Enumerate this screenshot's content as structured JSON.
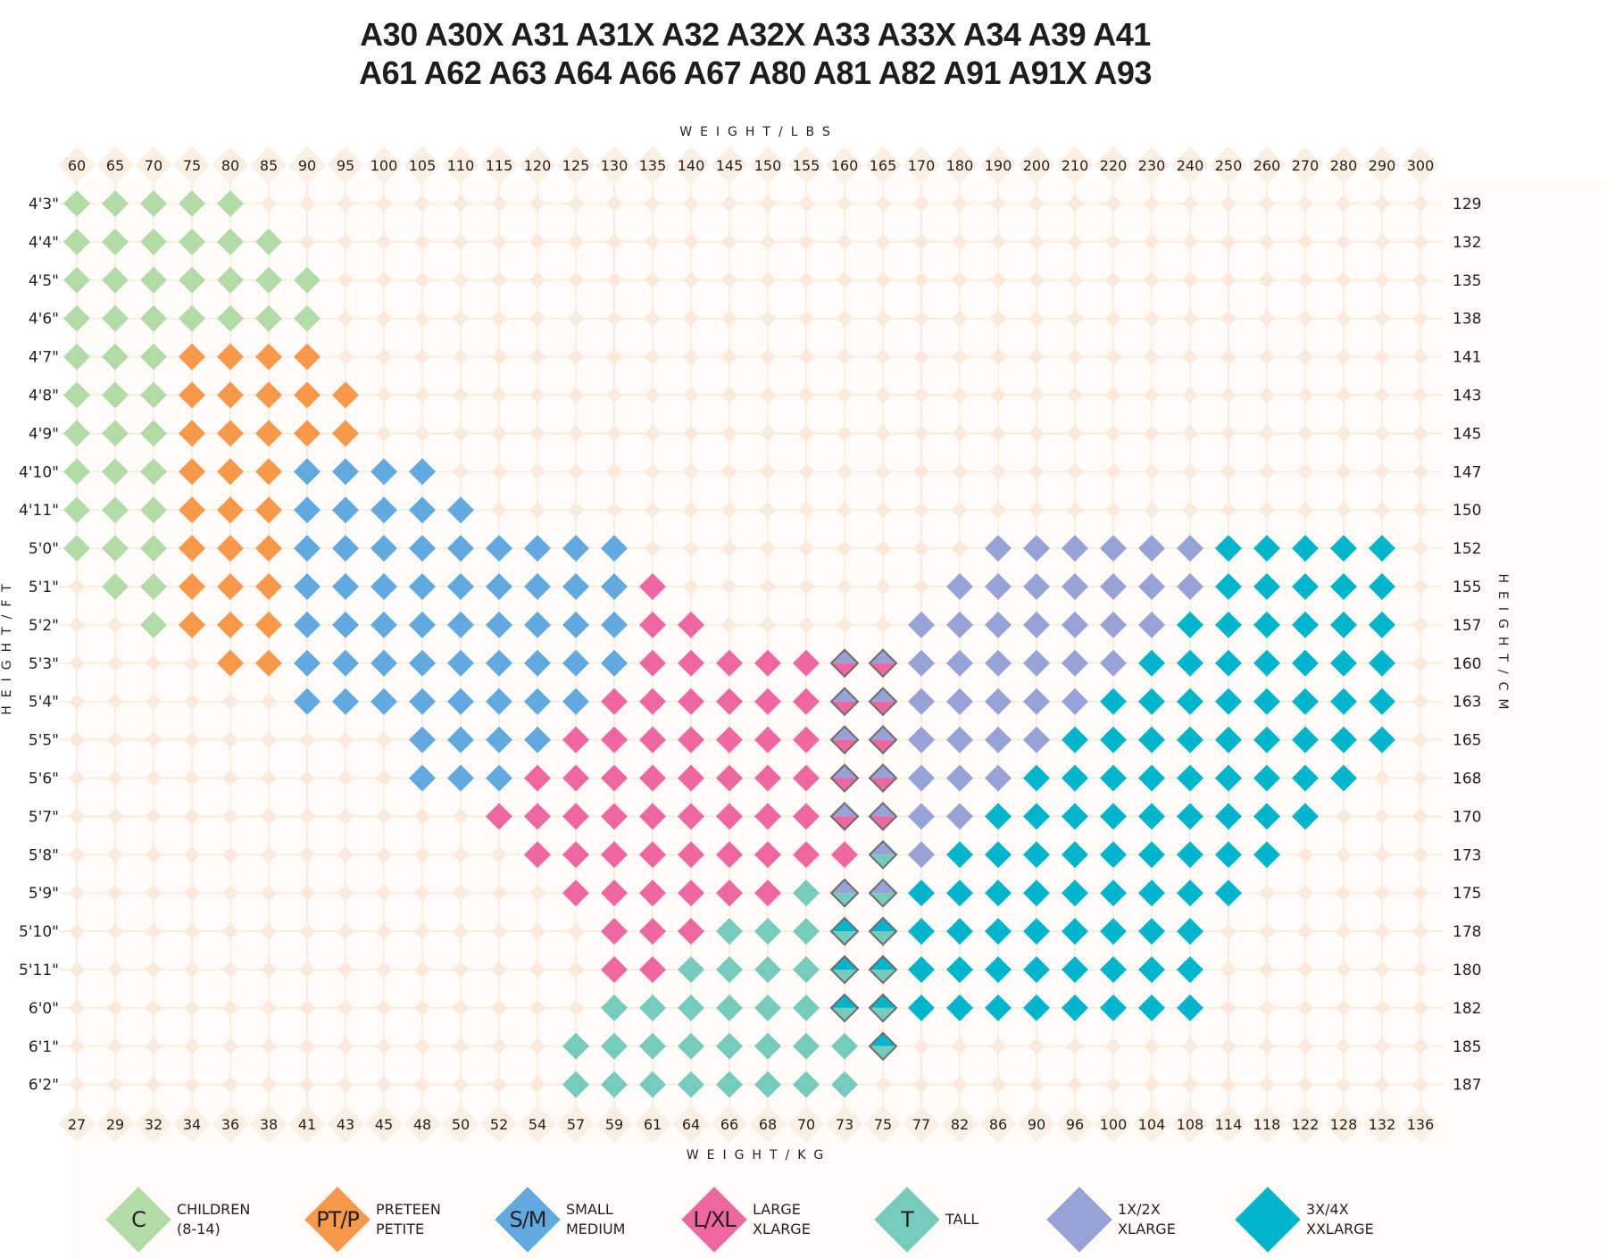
{
  "title": {
    "line1": "A30 A30X A31 A31X A32 A32X A33 A33X A34 A39 A41",
    "line2": "A61 A62 A63 A64 A66 A67 A80 A81 A82 A91 A91X A93"
  },
  "colors": {
    "C": "#b3dba8",
    "PT/P": "#f7984a",
    "S/M": "#62a9e0",
    "L/XL": "#ee67a0",
    "T": "#77cbbd",
    "1X/2X": "#97a2d6",
    "3X/4X": "#00b4cc",
    "grid": "#f8eee4",
    "empty_marker": "#fbeadc",
    "split_outline": "#6b6b70"
  },
  "legend": [
    {
      "key": "C",
      "code": "C",
      "line1": "CHILDREN",
      "line2": "(8-14)"
    },
    {
      "key": "PT/P",
      "code": "PT/P",
      "line1": "PRETEEN",
      "line2": "PETITE"
    },
    {
      "key": "S/M",
      "code": "S/M",
      "line1": "SMALL",
      "line2": "MEDIUM"
    },
    {
      "key": "L/XL",
      "code": "L/XL",
      "line1": "LARGE",
      "line2": "XLARGE"
    },
    {
      "key": "T",
      "code": "T",
      "line1": "TALL",
      "line2": ""
    },
    {
      "key": "1X/2X",
      "code": "",
      "line1": "1X/2X",
      "line2": "XLARGE"
    },
    {
      "key": "3X/4X",
      "code": "",
      "line1": "3X/4X",
      "line2": "XXLARGE"
    }
  ],
  "chart_data": {
    "type": "heatmap",
    "xlabel_top": "WEIGHT/LBS",
    "xlabel_bottom": "WEIGHT/KG",
    "ylabel_left": "HEIGHT/FT",
    "ylabel_right": "HEIGHT/CM",
    "weight_lbs": [
      "60",
      "65",
      "70",
      "75",
      "80",
      "85",
      "90",
      "95",
      "100",
      "105",
      "110",
      "115",
      "120",
      "125",
      "130",
      "135",
      "140",
      "145",
      "150",
      "155",
      "160",
      "165",
      "170",
      "180",
      "190",
      "200",
      "210",
      "220",
      "230",
      "240",
      "250",
      "260",
      "270",
      "280",
      "290",
      "300"
    ],
    "weight_kg": [
      "27",
      "29",
      "32",
      "34",
      "36",
      "38",
      "41",
      "43",
      "45",
      "48",
      "50",
      "52",
      "54",
      "57",
      "59",
      "61",
      "64",
      "66",
      "68",
      "70",
      "73",
      "75",
      "77",
      "82",
      "86",
      "90",
      "96",
      "100",
      "104",
      "108",
      "114",
      "118",
      "122",
      "128",
      "132",
      "136"
    ],
    "height_ft": [
      "4'3\"",
      "4'4\"",
      "4'5\"",
      "4'6\"",
      "4'7\"",
      "4'8\"",
      "4'9\"",
      "4'10\"",
      "4'11\"",
      "5'0\"",
      "5'1\"",
      "5'2\"",
      "5'3\"",
      "5'4\"",
      "5'5\"",
      "5'6\"",
      "5'7\"",
      "5'8\"",
      "5'9\"",
      "5'10\"",
      "5'11\"",
      "6'0\"",
      "6'1\"",
      "6'2\""
    ],
    "height_cm": [
      "129",
      "132",
      "135",
      "138",
      "141",
      "143",
      "145",
      "147",
      "150",
      "152",
      "155",
      "157",
      "160",
      "163",
      "165",
      "168",
      "170",
      "173",
      "175",
      "178",
      "180",
      "182",
      "185",
      "187"
    ],
    "split_cells_note_order": [
      "top",
      "bottom"
    ],
    "cells": [
      [
        "C",
        "C",
        "C",
        "C",
        "C",
        "",
        "",
        "",
        "",
        "",
        "",
        "",
        "",
        "",
        "",
        "",
        "",
        "",
        "",
        "",
        "",
        "",
        "",
        "",
        "",
        "",
        "",
        "",
        "",
        "",
        "",
        "",
        "",
        "",
        "",
        ""
      ],
      [
        "C",
        "C",
        "C",
        "C",
        "C",
        "C",
        "",
        "",
        "",
        "",
        "",
        "",
        "",
        "",
        "",
        "",
        "",
        "",
        "",
        "",
        "",
        "",
        "",
        "",
        "",
        "",
        "",
        "",
        "",
        "",
        "",
        "",
        "",
        "",
        "",
        ""
      ],
      [
        "C",
        "C",
        "C",
        "C",
        "C",
        "C",
        "C",
        "",
        "",
        "",
        "",
        "",
        "",
        "",
        "",
        "",
        "",
        "",
        "",
        "",
        "",
        "",
        "",
        "",
        "",
        "",
        "",
        "",
        "",
        "",
        "",
        "",
        "",
        "",
        "",
        ""
      ],
      [
        "C",
        "C",
        "C",
        "C",
        "C",
        "C",
        "C",
        "",
        "",
        "",
        "",
        "",
        "",
        "",
        "",
        "",
        "",
        "",
        "",
        "",
        "",
        "",
        "",
        "",
        "",
        "",
        "",
        "",
        "",
        "",
        "",
        "",
        "",
        "",
        "",
        ""
      ],
      [
        "C",
        "C",
        "C",
        "PT/P",
        "PT/P",
        "PT/P",
        "PT/P",
        "",
        "",
        "",
        "",
        "",
        "",
        "",
        "",
        "",
        "",
        "",
        "",
        "",
        "",
        "",
        "",
        "",
        "",
        "",
        "",
        "",
        "",
        "",
        "",
        "",
        "",
        "",
        "",
        ""
      ],
      [
        "C",
        "C",
        "C",
        "PT/P",
        "PT/P",
        "PT/P",
        "PT/P",
        "PT/P",
        "",
        "",
        "",
        "",
        "",
        "",
        "",
        "",
        "",
        "",
        "",
        "",
        "",
        "",
        "",
        "",
        "",
        "",
        "",
        "",
        "",
        "",
        "",
        "",
        "",
        "",
        "",
        ""
      ],
      [
        "C",
        "C",
        "C",
        "PT/P",
        "PT/P",
        "PT/P",
        "PT/P",
        "PT/P",
        "",
        "",
        "",
        "",
        "",
        "",
        "",
        "",
        "",
        "",
        "",
        "",
        "",
        "",
        "",
        "",
        "",
        "",
        "",
        "",
        "",
        "",
        "",
        "",
        "",
        "",
        "",
        ""
      ],
      [
        "C",
        "C",
        "C",
        "PT/P",
        "PT/P",
        "PT/P",
        "S/M",
        "S/M",
        "S/M",
        "S/M",
        "",
        "",
        "",
        "",
        "",
        "",
        "",
        "",
        "",
        "",
        "",
        "",
        "",
        "",
        "",
        "",
        "",
        "",
        "",
        "",
        "",
        "",
        "",
        "",
        "",
        ""
      ],
      [
        "C",
        "C",
        "C",
        "PT/P",
        "PT/P",
        "PT/P",
        "S/M",
        "S/M",
        "S/M",
        "S/M",
        "S/M",
        "",
        "",
        "",
        "",
        "",
        "",
        "",
        "",
        "",
        "",
        "",
        "",
        "",
        "",
        "",
        "",
        "",
        "",
        "",
        "",
        "",
        "",
        "",
        "",
        ""
      ],
      [
        "C",
        "C",
        "C",
        "PT/P",
        "PT/P",
        "PT/P",
        "S/M",
        "S/M",
        "S/M",
        "S/M",
        "S/M",
        "S/M",
        "S/M",
        "S/M",
        "S/M",
        "",
        "",
        "",
        "",
        "",
        "",
        "",
        "",
        "",
        "1X/2X",
        "1X/2X",
        "1X/2X",
        "1X/2X",
        "1X/2X",
        "1X/2X",
        "3X/4X",
        "3X/4X",
        "3X/4X",
        "3X/4X",
        "3X/4X",
        ""
      ],
      [
        "",
        "C",
        "C",
        "PT/P",
        "PT/P",
        "PT/P",
        "S/M",
        "S/M",
        "S/M",
        "S/M",
        "S/M",
        "S/M",
        "S/M",
        "S/M",
        "S/M",
        "L/XL",
        "",
        "",
        "",
        "",
        "",
        "",
        "",
        "1X/2X",
        "1X/2X",
        "1X/2X",
        "1X/2X",
        "1X/2X",
        "1X/2X",
        "1X/2X",
        "3X/4X",
        "3X/4X",
        "3X/4X",
        "3X/4X",
        "3X/4X",
        ""
      ],
      [
        "",
        "",
        "C",
        "PT/P",
        "PT/P",
        "PT/P",
        "S/M",
        "S/M",
        "S/M",
        "S/M",
        "S/M",
        "S/M",
        "S/M",
        "S/M",
        "S/M",
        "L/XL",
        "L/XL",
        "",
        "",
        "",
        "",
        "",
        "1X/2X",
        "1X/2X",
        "1X/2X",
        "1X/2X",
        "1X/2X",
        "1X/2X",
        "1X/2X",
        "3X/4X",
        "3X/4X",
        "3X/4X",
        "3X/4X",
        "3X/4X",
        "3X/4X",
        ""
      ],
      [
        "",
        "",
        "",
        "",
        "PT/P",
        "PT/P",
        "S/M",
        "S/M",
        "S/M",
        "S/M",
        "S/M",
        "S/M",
        "S/M",
        "S/M",
        "S/M",
        "L/XL",
        "L/XL",
        "L/XL",
        "L/XL",
        "L/XL",
        [
          "1X/2X",
          "L/XL"
        ],
        [
          "1X/2X",
          "L/XL"
        ],
        "1X/2X",
        "1X/2X",
        "1X/2X",
        "1X/2X",
        "1X/2X",
        "1X/2X",
        "3X/4X",
        "3X/4X",
        "3X/4X",
        "3X/4X",
        "3X/4X",
        "3X/4X",
        "3X/4X",
        ""
      ],
      [
        "",
        "",
        "",
        "",
        "",
        "",
        "S/M",
        "S/M",
        "S/M",
        "S/M",
        "S/M",
        "S/M",
        "S/M",
        "S/M",
        "L/XL",
        "L/XL",
        "L/XL",
        "L/XL",
        "L/XL",
        "L/XL",
        [
          "1X/2X",
          "L/XL"
        ],
        [
          "1X/2X",
          "L/XL"
        ],
        "1X/2X",
        "1X/2X",
        "1X/2X",
        "1X/2X",
        "1X/2X",
        "3X/4X",
        "3X/4X",
        "3X/4X",
        "3X/4X",
        "3X/4X",
        "3X/4X",
        "3X/4X",
        "3X/4X",
        ""
      ],
      [
        "",
        "",
        "",
        "",
        "",
        "",
        "",
        "",
        "",
        "S/M",
        "S/M",
        "S/M",
        "S/M",
        "L/XL",
        "L/XL",
        "L/XL",
        "L/XL",
        "L/XL",
        "L/XL",
        "L/XL",
        [
          "1X/2X",
          "L/XL"
        ],
        [
          "1X/2X",
          "L/XL"
        ],
        "1X/2X",
        "1X/2X",
        "1X/2X",
        "1X/2X",
        "3X/4X",
        "3X/4X",
        "3X/4X",
        "3X/4X",
        "3X/4X",
        "3X/4X",
        "3X/4X",
        "3X/4X",
        "3X/4X",
        ""
      ],
      [
        "",
        "",
        "",
        "",
        "",
        "",
        "",
        "",
        "",
        "S/M",
        "S/M",
        "S/M",
        "L/XL",
        "L/XL",
        "L/XL",
        "L/XL",
        "L/XL",
        "L/XL",
        "L/XL",
        "L/XL",
        [
          "1X/2X",
          "L/XL"
        ],
        [
          "1X/2X",
          "L/XL"
        ],
        "1X/2X",
        "1X/2X",
        "1X/2X",
        "3X/4X",
        "3X/4X",
        "3X/4X",
        "3X/4X",
        "3X/4X",
        "3X/4X",
        "3X/4X",
        "3X/4X",
        "3X/4X",
        "",
        ""
      ],
      [
        "",
        "",
        "",
        "",
        "",
        "",
        "",
        "",
        "",
        "",
        "",
        "L/XL",
        "L/XL",
        "L/XL",
        "L/XL",
        "L/XL",
        "L/XL",
        "L/XL",
        "L/XL",
        "L/XL",
        [
          "1X/2X",
          "L/XL"
        ],
        [
          "1X/2X",
          "L/XL"
        ],
        "1X/2X",
        "1X/2X",
        "3X/4X",
        "3X/4X",
        "3X/4X",
        "3X/4X",
        "3X/4X",
        "3X/4X",
        "3X/4X",
        "3X/4X",
        "3X/4X",
        "",
        "",
        ""
      ],
      [
        "",
        "",
        "",
        "",
        "",
        "",
        "",
        "",
        "",
        "",
        "",
        "",
        "L/XL",
        "L/XL",
        "L/XL",
        "L/XL",
        "L/XL",
        "L/XL",
        "L/XL",
        "L/XL",
        "L/XL",
        [
          "1X/2X",
          "T"
        ],
        "1X/2X",
        "3X/4X",
        "3X/4X",
        "3X/4X",
        "3X/4X",
        "3X/4X",
        "3X/4X",
        "3X/4X",
        "3X/4X",
        "3X/4X",
        "",
        "",
        "",
        ""
      ],
      [
        "",
        "",
        "",
        "",
        "",
        "",
        "",
        "",
        "",
        "",
        "",
        "",
        "",
        "L/XL",
        "L/XL",
        "L/XL",
        "L/XL",
        "L/XL",
        "L/XL",
        "T",
        [
          "1X/2X",
          "T"
        ],
        [
          "1X/2X",
          "T"
        ],
        "3X/4X",
        "3X/4X",
        "3X/4X",
        "3X/4X",
        "3X/4X",
        "3X/4X",
        "3X/4X",
        "3X/4X",
        "3X/4X",
        "",
        "",
        "",
        "",
        ""
      ],
      [
        "",
        "",
        "",
        "",
        "",
        "",
        "",
        "",
        "",
        "",
        "",
        "",
        "",
        "",
        "L/XL",
        "L/XL",
        "L/XL",
        "T",
        "T",
        "T",
        [
          "3X/4X",
          "T"
        ],
        [
          "3X/4X",
          "T"
        ],
        "3X/4X",
        "3X/4X",
        "3X/4X",
        "3X/4X",
        "3X/4X",
        "3X/4X",
        "3X/4X",
        "3X/4X",
        "",
        "",
        "",
        "",
        "",
        ""
      ],
      [
        "",
        "",
        "",
        "",
        "",
        "",
        "",
        "",
        "",
        "",
        "",
        "",
        "",
        "",
        "L/XL",
        "L/XL",
        "T",
        "T",
        "T",
        "T",
        [
          "3X/4X",
          "T"
        ],
        [
          "3X/4X",
          "T"
        ],
        "3X/4X",
        "3X/4X",
        "3X/4X",
        "3X/4X",
        "3X/4X",
        "3X/4X",
        "3X/4X",
        "3X/4X",
        "",
        "",
        "",
        "",
        "",
        ""
      ],
      [
        "",
        "",
        "",
        "",
        "",
        "",
        "",
        "",
        "",
        "",
        "",
        "",
        "",
        "",
        "T",
        "T",
        "T",
        "T",
        "T",
        "T",
        [
          "3X/4X",
          "T"
        ],
        [
          "3X/4X",
          "T"
        ],
        "3X/4X",
        "3X/4X",
        "3X/4X",
        "3X/4X",
        "3X/4X",
        "3X/4X",
        "3X/4X",
        "3X/4X",
        "",
        "",
        "",
        "",
        "",
        ""
      ],
      [
        "",
        "",
        "",
        "",
        "",
        "",
        "",
        "",
        "",
        "",
        "",
        "",
        "",
        "T",
        "T",
        "T",
        "T",
        "T",
        "T",
        "T",
        "T",
        [
          "3X/4X",
          "T"
        ],
        "",
        "",
        "",
        "",
        "",
        "",
        "",
        "",
        "",
        "",
        "",
        "",
        "",
        ""
      ],
      [
        "",
        "",
        "",
        "",
        "",
        "",
        "",
        "",
        "",
        "",
        "",
        "",
        "",
        "T",
        "T",
        "T",
        "T",
        "T",
        "T",
        "T",
        "T",
        "",
        "",
        "",
        "",
        "",
        "",
        "",
        "",
        "",
        "",
        "",
        "",
        "",
        "",
        ""
      ]
    ]
  }
}
